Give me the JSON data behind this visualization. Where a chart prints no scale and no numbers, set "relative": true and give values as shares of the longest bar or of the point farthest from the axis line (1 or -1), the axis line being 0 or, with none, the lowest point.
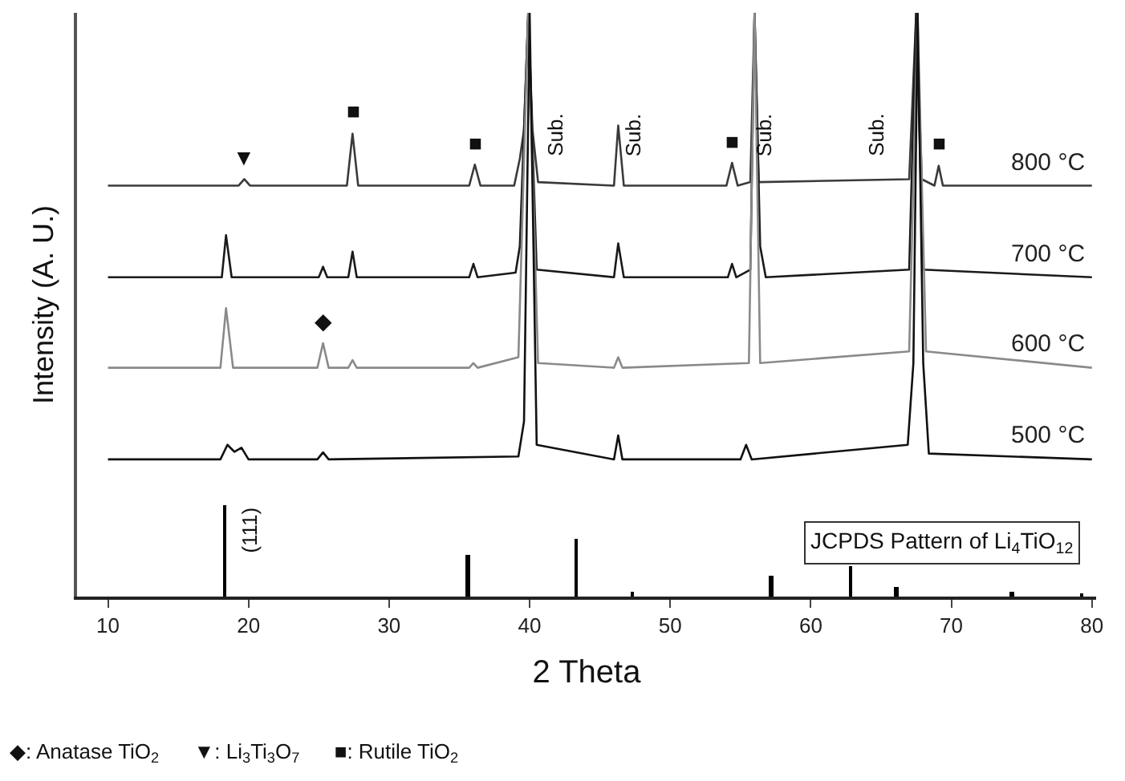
{
  "chart_data": {
    "type": "line",
    "relative": true,
    "xlabel": "2 Theta",
    "ylabel": "Intensity (A. U.)",
    "xlim": [
      7.8,
      80.3
    ],
    "xticks": [
      10,
      20,
      30,
      40,
      50,
      60,
      70,
      80
    ],
    "tick_labels": "x",
    "legend": false,
    "series": [
      {
        "name": "800 °C",
        "color": "#3a3a3a",
        "x": [
          10,
          19.3,
          19.7,
          20.1,
          27.0,
          27.4,
          27.8,
          35.7,
          36.1,
          36.5,
          38.9,
          39.3,
          39.6,
          39.9,
          40.2,
          40.6,
          46.0,
          46.3,
          46.7,
          54.0,
          54.4,
          54.8,
          55.7,
          56.0,
          56.3,
          67.0,
          67.5,
          67.9,
          68.8,
          69.1,
          69.4,
          80
        ],
        "values": [
          0.704,
          0.704,
          0.715,
          0.704,
          0.704,
          0.793,
          0.704,
          0.704,
          0.74,
          0.704,
          0.704,
          0.75,
          0.8,
          1.0,
          0.8,
          0.71,
          0.704,
          0.807,
          0.704,
          0.704,
          0.743,
          0.704,
          0.71,
          1.0,
          0.71,
          0.715,
          1.0,
          0.715,
          0.704,
          0.738,
          0.704,
          0.704
        ]
      },
      {
        "name": "700 °C",
        "color": "#1a1a1a",
        "x": [
          10,
          18.1,
          18.4,
          18.8,
          25.0,
          25.3,
          25.6,
          27.1,
          27.4,
          27.7,
          35.7,
          36.0,
          36.3,
          39.0,
          39.3,
          39.9,
          40.5,
          46.0,
          46.3,
          46.7,
          54.1,
          54.4,
          54.7,
          55.7,
          56.0,
          56.4,
          56.8,
          67.0,
          67.5,
          68.0,
          80
        ],
        "values": [
          0.547,
          0.547,
          0.619,
          0.547,
          0.547,
          0.565,
          0.547,
          0.547,
          0.591,
          0.547,
          0.547,
          0.57,
          0.547,
          0.555,
          0.6,
          1.0,
          0.56,
          0.547,
          0.605,
          0.547,
          0.547,
          0.57,
          0.547,
          0.56,
          1.0,
          0.6,
          0.547,
          0.56,
          1.0,
          0.56,
          0.547
        ]
      },
      {
        "name": "600 °C",
        "color": "#8a8a8a",
        "x": [
          10,
          18.0,
          18.4,
          18.9,
          24.9,
          25.3,
          25.7,
          27.1,
          27.4,
          27.7,
          35.7,
          36.0,
          36.3,
          39.2,
          39.9,
          40.6,
          46.0,
          46.3,
          46.6,
          55.6,
          56.0,
          56.4,
          67.0,
          67.6,
          68.2,
          80
        ],
        "values": [
          0.392,
          0.392,
          0.494,
          0.392,
          0.392,
          0.434,
          0.392,
          0.392,
          0.405,
          0.392,
          0.392,
          0.4,
          0.392,
          0.41,
          1.0,
          0.4,
          0.392,
          0.41,
          0.392,
          0.4,
          1.0,
          0.4,
          0.42,
          1.0,
          0.42,
          0.392
        ]
      },
      {
        "name": "500 °C",
        "color": "#111111",
        "x": [
          10,
          18.0,
          18.5,
          19.0,
          19.5,
          20.0,
          24.9,
          25.3,
          25.7,
          39.2,
          39.6,
          40.0,
          40.5,
          46.0,
          46.3,
          46.6,
          55.0,
          55.4,
          55.8,
          66.9,
          67.3,
          67.6,
          68.0,
          68.4,
          80
        ],
        "values": [
          0.235,
          0.235,
          0.26,
          0.248,
          0.255,
          0.235,
          0.235,
          0.247,
          0.235,
          0.24,
          0.3,
          1.0,
          0.26,
          0.235,
          0.276,
          0.235,
          0.235,
          0.26,
          0.235,
          0.26,
          0.4,
          1.0,
          0.4,
          0.245,
          0.235
        ]
      },
      {
        "type": "bar",
        "color": "#000000",
        "x": [
          18.3,
          35.6,
          43.3,
          47.3,
          57.2,
          62.8,
          66.1,
          74.3,
          79.3
        ],
        "values": [
          0.157,
          0.072,
          0.099,
          0.008,
          0.036,
          0.052,
          0.017,
          0.008,
          0.006
        ]
      }
    ],
    "annotations": [
      {
        "text": "(111)",
        "x": 18.3,
        "y": 0.157
      },
      {
        "text": "▼",
        "x": 19.7,
        "y": 0.715
      },
      {
        "text": "■",
        "x": 27.4,
        "y": 0.793
      },
      {
        "text": "■",
        "x": 36.1,
        "y": 0.74
      },
      {
        "text": "■",
        "x": 54.4,
        "y": 0.743
      },
      {
        "text": "■",
        "x": 69.1,
        "y": 0.738
      },
      {
        "text": "◆",
        "x": 25.3,
        "y": 0.434
      },
      "Sub.",
      "Sub.",
      "Sub.",
      "Sub.",
      "JCPDS Pattern of Li$_{4}$TiO$_{12}$",
      "◆: Anatase TiO$_{2}$      ▼: Li$_{3}$Ti$_{3}$O$_{7}$      ■: Rutile TiO$_{2}$"
    ]
  }
}
